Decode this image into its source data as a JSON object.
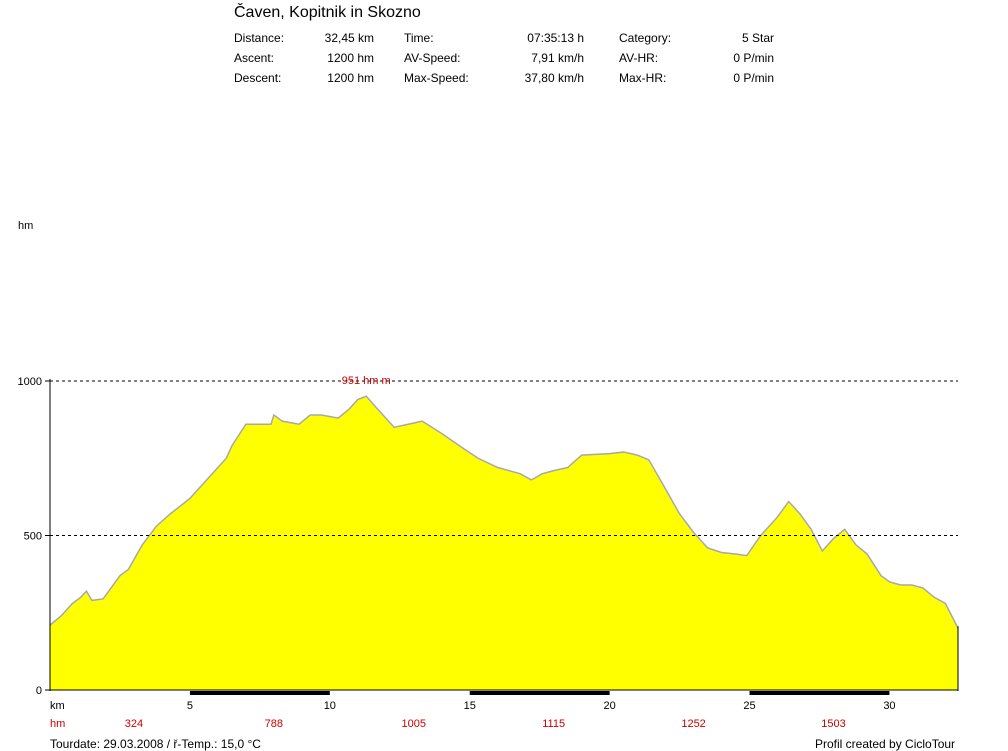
{
  "header": {
    "title": "Čaven, Kopitnik in Skozno",
    "stats": [
      [
        {
          "label": "Distance:",
          "value": "32,45 km"
        },
        {
          "label": "Ascent:",
          "value": "1200 hm"
        },
        {
          "label": "Descent:",
          "value": "1200 hm"
        }
      ],
      [
        {
          "label": "Time:",
          "value": "07:35:13 h"
        },
        {
          "label": "AV-Speed:",
          "value": "7,91 km/h"
        },
        {
          "label": "Max-Speed:",
          "value": "37,80 km/h"
        }
      ],
      [
        {
          "label": "Category:",
          "value": "5 Star"
        },
        {
          "label": "AV-HR:",
          "value": "0 P/min"
        },
        {
          "label": "Max-HR:",
          "value": "0 P/min"
        }
      ]
    ]
  },
  "footer": {
    "left": "Tourdate: 29.03.2008  /  ř-Temp.: 15,0 °C",
    "right": "Profil created by CicloTour"
  },
  "chart_data": {
    "type": "area",
    "ylabel": "hm",
    "xlabel": "km",
    "xlim": [
      0,
      32.45
    ],
    "ylim": [
      0,
      1000
    ],
    "yticks": [
      0,
      500,
      1000
    ],
    "xticks": [
      5,
      10,
      15,
      20,
      25,
      30
    ],
    "grid_y": [
      500,
      1000
    ],
    "fill_color": "#ffff00",
    "line_color": "#a8a8a8",
    "max_annotation": {
      "text": "951 hm m",
      "x": 11.3,
      "y": 951
    },
    "cumulative_ascent_label": "hm",
    "cumulative_ascent": [
      {
        "km": 3,
        "value": "324"
      },
      {
        "km": 8,
        "value": "788"
      },
      {
        "km": 13,
        "value": "1005"
      },
      {
        "km": 18,
        "value": "1115"
      },
      {
        "km": 23,
        "value": "1252"
      },
      {
        "km": 28,
        "value": "1503"
      }
    ],
    "x": [
      0,
      0.4,
      0.8,
      1.1,
      1.3,
      1.5,
      1.9,
      2.5,
      2.8,
      3.3,
      3.8,
      4.3,
      5.0,
      5.6,
      6.3,
      6.5,
      7.0,
      7.9,
      8.0,
      8.3,
      8.9,
      9.3,
      9.7,
      10.3,
      10.7,
      11.0,
      11.3,
      11.6,
      12.0,
      12.3,
      12.8,
      13.3,
      14.0,
      14.8,
      15.3,
      16.0,
      16.8,
      17.2,
      17.6,
      18.0,
      18.5,
      19.0,
      20.0,
      20.5,
      21.0,
      21.4,
      22.0,
      22.5,
      23.0,
      23.5,
      24.0,
      24.5,
      24.9,
      25.4,
      26.0,
      26.4,
      26.8,
      27.2,
      27.6,
      28.0,
      28.4,
      28.8,
      29.2,
      29.7,
      30.0,
      30.4,
      30.8,
      31.2,
      31.6,
      32.0,
      32.45
    ],
    "y": [
      210,
      240,
      280,
      300,
      320,
      290,
      295,
      370,
      390,
      470,
      530,
      570,
      620,
      680,
      750,
      790,
      860,
      860,
      890,
      870,
      860,
      890,
      890,
      880,
      910,
      940,
      951,
      920,
      880,
      850,
      860,
      870,
      830,
      780,
      750,
      720,
      700,
      680,
      700,
      710,
      720,
      760,
      765,
      770,
      760,
      745,
      650,
      570,
      510,
      460,
      445,
      440,
      435,
      500,
      560,
      610,
      570,
      520,
      450,
      490,
      520,
      470,
      440,
      370,
      350,
      340,
      340,
      330,
      300,
      280,
      200
    ]
  }
}
